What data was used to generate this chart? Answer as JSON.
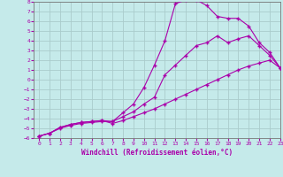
{
  "xlabel": "Windchill (Refroidissement éolien,°C)",
  "xlim": [
    -0.5,
    23
  ],
  "ylim": [
    -6,
    8
  ],
  "xticks": [
    0,
    1,
    2,
    3,
    4,
    5,
    6,
    7,
    8,
    9,
    10,
    11,
    12,
    13,
    14,
    15,
    16,
    17,
    18,
    19,
    20,
    21,
    22,
    23
  ],
  "yticks": [
    -6,
    -5,
    -4,
    -3,
    -2,
    -1,
    0,
    1,
    2,
    3,
    4,
    5,
    6,
    7,
    8
  ],
  "bg_color": "#c5eaea",
  "grid_color": "#aacccc",
  "line_color": "#aa00aa",
  "line1_x": [
    0,
    1,
    2,
    3,
    4,
    5,
    6,
    7,
    8,
    9,
    10,
    11,
    12,
    13,
    14,
    15,
    16,
    17,
    18,
    19,
    20,
    21,
    22,
    23
  ],
  "line1_y": [
    -5.8,
    -5.5,
    -5.0,
    -4.7,
    -4.5,
    -4.4,
    -4.3,
    -4.3,
    -3.4,
    -2.5,
    -0.8,
    1.5,
    4.0,
    7.8,
    8.2,
    8.2,
    7.6,
    6.5,
    6.3,
    6.3,
    5.5,
    3.8,
    2.8,
    1.2
  ],
  "line2_x": [
    0,
    1,
    2,
    3,
    4,
    5,
    6,
    7,
    8,
    9,
    10,
    11,
    12,
    13,
    14,
    15,
    16,
    17,
    18,
    19,
    20,
    21,
    22,
    23
  ],
  "line2_y": [
    -5.8,
    -5.5,
    -4.9,
    -4.6,
    -4.4,
    -4.3,
    -4.2,
    -4.3,
    -3.8,
    -3.3,
    -2.5,
    -1.8,
    0.5,
    1.5,
    2.5,
    3.5,
    3.8,
    4.5,
    3.8,
    4.2,
    4.5,
    3.5,
    2.5,
    1.2
  ],
  "line3_x": [
    0,
    1,
    2,
    3,
    4,
    5,
    6,
    7,
    8,
    9,
    10,
    11,
    12,
    13,
    14,
    15,
    16,
    17,
    18,
    19,
    20,
    21,
    22,
    23
  ],
  "line3_y": [
    -5.8,
    -5.5,
    -4.9,
    -4.6,
    -4.4,
    -4.3,
    -4.2,
    -4.5,
    -4.2,
    -3.8,
    -3.4,
    -3.0,
    -2.5,
    -2.0,
    -1.5,
    -1.0,
    -0.5,
    0.0,
    0.5,
    1.0,
    1.4,
    1.7,
    2.0,
    1.2
  ]
}
